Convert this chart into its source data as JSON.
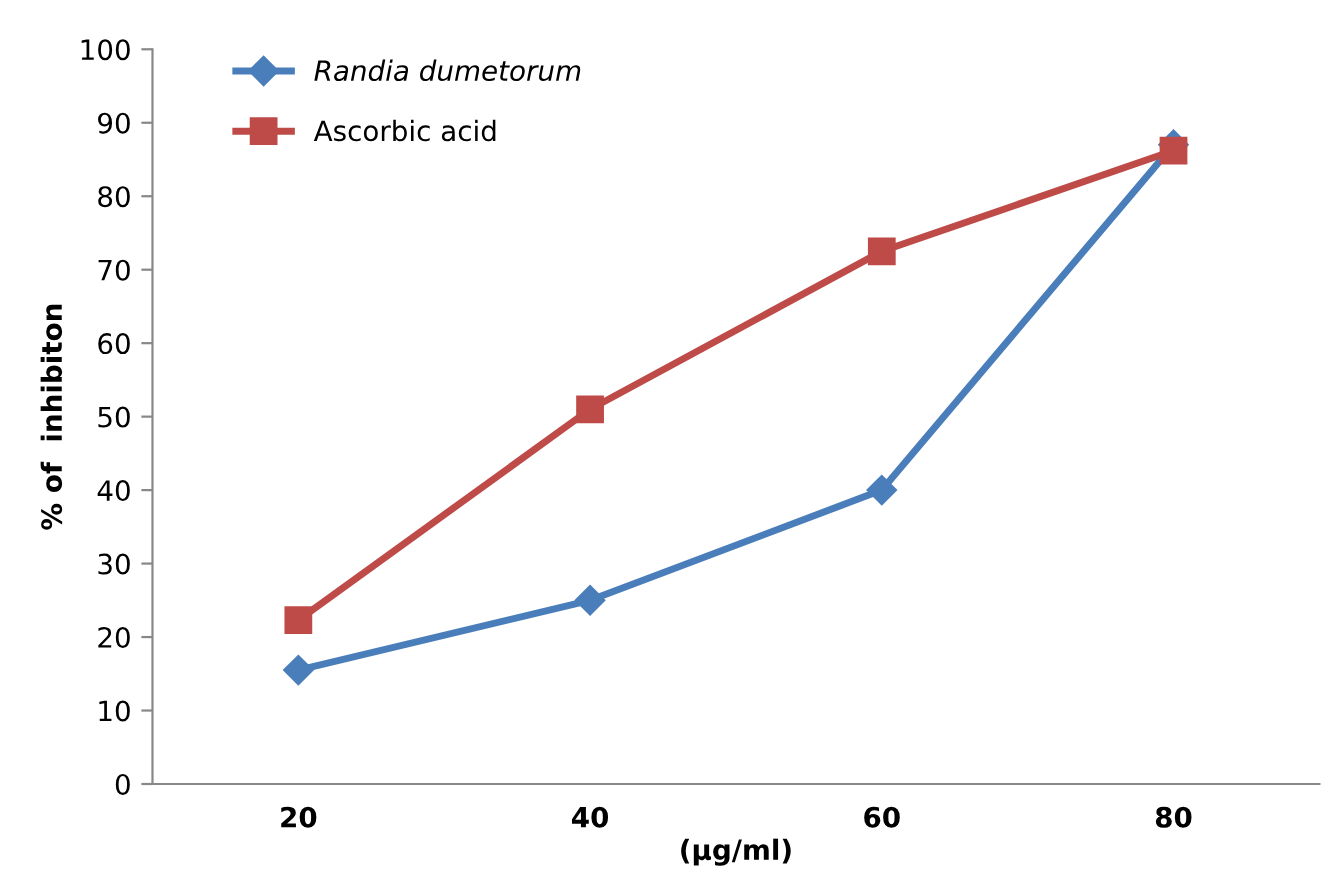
{
  "chart_data": {
    "type": "line",
    "xlabel": "(µg/ml)",
    "ylabel": "% of  inhibiton",
    "categories": [
      "20",
      "40",
      "60",
      "80"
    ],
    "series": [
      {
        "name": "Randia dumetorum",
        "color": "#4a7ebb",
        "marker": "diamond",
        "values": [
          15.5,
          25,
          40,
          87
        ]
      },
      {
        "name": "Ascorbic acid",
        "color": "#be4b48",
        "marker": "square",
        "values": [
          22.3,
          51,
          72.5,
          86.2
        ]
      }
    ],
    "ylim": [
      0,
      100
    ],
    "yticks": [
      0,
      10,
      20,
      30,
      40,
      50,
      60,
      70,
      80,
      90,
      100
    ],
    "grid": false,
    "legend": "top left",
    "line_style": "solid"
  }
}
